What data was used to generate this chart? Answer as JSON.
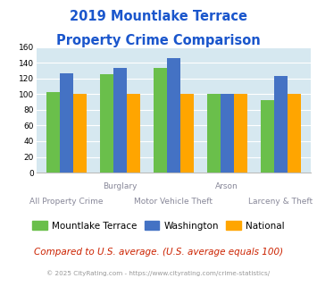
{
  "title_line1": "2019 Mountlake Terrace",
  "title_line2": "Property Crime Comparison",
  "mountlake_terrace": [
    103,
    126,
    133,
    100,
    93
  ],
  "washington": [
    127,
    133,
    146,
    100,
    123
  ],
  "national": [
    100,
    100,
    100,
    100,
    100
  ],
  "ylim": [
    0,
    160
  ],
  "yticks": [
    0,
    20,
    40,
    60,
    80,
    100,
    120,
    140,
    160
  ],
  "color_mt": "#6abf4b",
  "color_wa": "#4472c4",
  "color_nat": "#ffa500",
  "background_color": "#d6e8f0",
  "title_color": "#1a56cc",
  "xlabel_color": "#888899",
  "footnote": "Compared to U.S. average. (U.S. average equals 100)",
  "copyright": "© 2025 CityRating.com - https://www.cityrating.com/crime-statistics/",
  "legend_mt": "Mountlake Terrace",
  "legend_wa": "Washington",
  "legend_nat": "National",
  "top_labels": [
    "",
    "Burglary",
    "",
    "Arson",
    ""
  ],
  "bottom_labels": [
    "All Property Crime",
    "",
    "Motor Vehicle Theft",
    "",
    "Larceny & Theft"
  ]
}
